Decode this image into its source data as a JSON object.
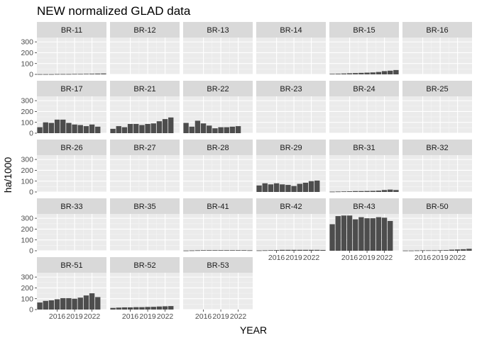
{
  "chart_data": {
    "type": "bar",
    "title": "NEW normalized GLAD data",
    "xlabel": "YEAR",
    "ylabel": "ha/1000",
    "ylim": [
      0,
      340
    ],
    "yticks": [
      0,
      100,
      200,
      300
    ],
    "ytick_labels": [
      "0",
      "100",
      "200",
      "300"
    ],
    "xlim": [
      2012.5,
      2024.5
    ],
    "xticks": [
      2016,
      2019,
      2022
    ],
    "xtick_labels": [
      "2016",
      "2019",
      "2022"
    ],
    "years": [
      2013,
      2014,
      2015,
      2016,
      2017,
      2018,
      2019,
      2020,
      2021,
      2022,
      2023,
      2024
    ],
    "bar_color": "#4d4d4d",
    "panel_background": "#ebebeb",
    "strip_background": "#d9d9d9",
    "grid": true,
    "layout": "facet_wrap 6 columns, fixed scales",
    "panels": [
      {
        "name": "BR-11",
        "values": [
          2,
          2,
          2,
          3,
          3,
          3,
          4,
          4,
          5,
          6,
          7,
          8
        ]
      },
      {
        "name": "BR-12",
        "values": [
          0,
          0,
          0,
          0,
          0,
          0,
          0,
          0,
          0,
          0,
          0,
          0
        ]
      },
      {
        "name": "BR-13",
        "values": [
          0,
          0,
          0,
          0,
          0,
          0,
          0,
          0,
          0,
          0,
          0,
          0
        ]
      },
      {
        "name": "BR-14",
        "values": [
          0,
          0,
          0,
          0,
          0,
          0,
          0,
          0,
          0,
          0,
          0,
          0
        ]
      },
      {
        "name": "BR-15",
        "values": [
          5,
          6,
          8,
          10,
          12,
          14,
          16,
          18,
          22,
          30,
          34,
          40
        ]
      },
      {
        "name": "BR-16",
        "values": [
          0,
          0,
          0,
          0,
          0,
          0,
          0,
          0,
          0,
          0,
          0,
          0
        ]
      },
      {
        "name": "BR-17",
        "values": [
          55,
          100,
          95,
          125,
          125,
          95,
          80,
          75,
          65,
          80,
          60,
          0
        ]
      },
      {
        "name": "BR-21",
        "values": [
          40,
          65,
          55,
          85,
          85,
          75,
          85,
          90,
          110,
          130,
          145,
          0
        ]
      },
      {
        "name": "BR-22",
        "values": [
          95,
          60,
          115,
          90,
          70,
          45,
          55,
          55,
          60,
          65,
          0,
          0
        ]
      },
      {
        "name": "BR-23",
        "values": [
          0,
          0,
          0,
          0,
          0,
          0,
          0,
          0,
          0,
          0,
          0,
          0
        ]
      },
      {
        "name": "BR-24",
        "values": [
          0,
          0,
          0,
          0,
          0,
          0,
          0,
          0,
          0,
          0,
          0,
          0
        ]
      },
      {
        "name": "BR-25",
        "values": [
          0,
          0,
          0,
          0,
          0,
          0,
          0,
          0,
          0,
          0,
          0,
          0
        ]
      },
      {
        "name": "BR-26",
        "values": [
          0,
          0,
          0,
          0,
          0,
          0,
          0,
          0,
          0,
          0,
          0,
          0
        ]
      },
      {
        "name": "BR-27",
        "values": [
          0,
          0,
          0,
          0,
          0,
          0,
          0,
          0,
          0,
          0,
          0,
          0
        ]
      },
      {
        "name": "BR-28",
        "values": [
          0,
          0,
          0,
          0,
          0,
          0,
          0,
          0,
          0,
          0,
          0,
          0
        ]
      },
      {
        "name": "BR-29",
        "values": [
          60,
          80,
          70,
          80,
          70,
          65,
          55,
          75,
          85,
          100,
          105,
          0
        ]
      },
      {
        "name": "BR-31",
        "values": [
          3,
          4,
          5,
          6,
          8,
          8,
          9,
          10,
          12,
          18,
          22,
          18
        ]
      },
      {
        "name": "BR-32",
        "values": [
          0,
          0,
          0,
          0,
          0,
          0,
          0,
          0,
          0,
          0,
          0,
          0
        ]
      },
      {
        "name": "BR-33",
        "values": [
          0,
          0,
          0,
          0,
          0,
          0,
          0,
          0,
          0,
          0,
          0,
          0
        ]
      },
      {
        "name": "BR-35",
        "values": [
          0,
          0,
          0,
          0,
          0,
          0,
          0,
          0,
          0,
          0,
          0,
          0
        ]
      },
      {
        "name": "BR-41",
        "values": [
          2,
          3,
          4,
          5,
          5,
          5,
          5,
          5,
          5,
          5,
          5,
          4
        ]
      },
      {
        "name": "BR-42",
        "values": [
          3,
          4,
          5,
          6,
          8,
          8,
          8,
          8,
          8,
          8,
          8,
          7
        ]
      },
      {
        "name": "BR-43",
        "values": [
          245,
          320,
          325,
          325,
          290,
          310,
          300,
          300,
          310,
          305,
          275,
          0
        ]
      },
      {
        "name": "BR-50",
        "values": [
          2,
          2,
          3,
          4,
          4,
          4,
          5,
          6,
          10,
          12,
          14,
          18
        ]
      },
      {
        "name": "BR-51",
        "values": [
          65,
          80,
          85,
          95,
          105,
          105,
          100,
          110,
          130,
          150,
          115,
          0
        ]
      },
      {
        "name": "BR-52",
        "values": [
          15,
          18,
          20,
          20,
          22,
          22,
          24,
          25,
          28,
          30,
          32,
          0
        ]
      },
      {
        "name": "BR-53",
        "values": [
          0,
          0,
          0,
          0,
          0,
          0,
          0,
          0,
          0,
          0,
          0,
          0
        ]
      }
    ]
  }
}
